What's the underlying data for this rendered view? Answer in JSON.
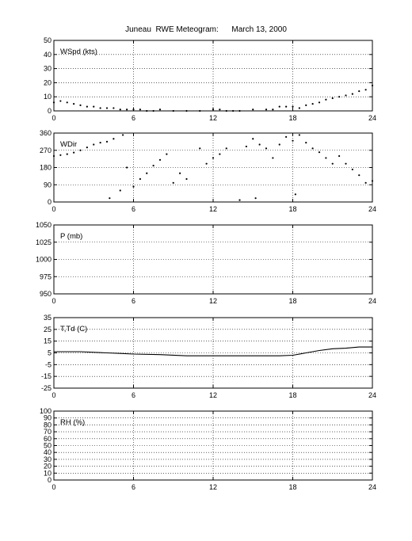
{
  "title": "Juneau  RWE Meteogram:      March 13, 2000",
  "chart_data": [
    {
      "type": "scatter",
      "label": "WSpd (kts)",
      "xlim": [
        0,
        24
      ],
      "ylim": [
        0,
        50
      ],
      "xticks": [
        0,
        6,
        12,
        18,
        24
      ],
      "yticks": [
        0,
        10,
        20,
        30,
        40,
        50
      ],
      "grid": true,
      "x": [
        0,
        0.5,
        1,
        1.5,
        2,
        2.5,
        3,
        3.5,
        4,
        4.5,
        5,
        5.5,
        6,
        6.5,
        7,
        7.5,
        8,
        9,
        10,
        11,
        12,
        12.5,
        13,
        13.5,
        14,
        15,
        16,
        16.5,
        17,
        17.5,
        18,
        18.5,
        19,
        19.5,
        20,
        20.5,
        21,
        21.5,
        22,
        22.5,
        23,
        23.5,
        24
      ],
      "y": [
        6,
        7,
        6,
        5,
        4,
        3,
        3,
        2,
        2,
        2,
        1,
        1,
        1,
        1,
        0,
        0,
        1,
        0,
        0,
        0,
        1,
        1,
        0,
        0,
        0,
        1,
        1,
        1,
        3,
        3,
        3,
        2,
        4,
        5,
        6,
        8,
        9,
        10,
        11,
        12,
        14,
        15,
        18
      ]
    },
    {
      "type": "scatter",
      "label": "WDir",
      "xlim": [
        0,
        24
      ],
      "ylim": [
        0,
        360
      ],
      "xticks": [
        0,
        6,
        12,
        18,
        24
      ],
      "yticks": [
        0,
        90,
        180,
        270,
        360
      ],
      "grid": true,
      "x": [
        0,
        0.5,
        1,
        1.5,
        2,
        2.5,
        3,
        3.5,
        4,
        4.2,
        4.5,
        5,
        5.2,
        5.5,
        6,
        6.5,
        7,
        7.5,
        8,
        8.5,
        9,
        9.5,
        10,
        11,
        11.5,
        12,
        12.5,
        13,
        14,
        14.5,
        15,
        15.2,
        15.5,
        16,
        16.5,
        17,
        17.5,
        18,
        18.2,
        18.5,
        19,
        19.5,
        20,
        20.5,
        21,
        21.5,
        22,
        22.5,
        23,
        23.5,
        24
      ],
      "y": [
        240,
        245,
        250,
        258,
        270,
        285,
        300,
        310,
        315,
        20,
        330,
        60,
        350,
        180,
        80,
        120,
        150,
        190,
        220,
        250,
        100,
        150,
        120,
        280,
        200,
        230,
        250,
        280,
        10,
        290,
        330,
        20,
        300,
        280,
        230,
        300,
        340,
        320,
        40,
        350,
        310,
        280,
        260,
        230,
        200,
        240,
        200,
        170,
        140,
        100,
        110
      ]
    },
    {
      "type": "line",
      "label": "P (mb)",
      "xlim": [
        0,
        24
      ],
      "ylim": [
        950,
        1050
      ],
      "xticks": [
        0,
        6,
        12,
        18,
        24
      ],
      "yticks": [
        950,
        975,
        1000,
        1025,
        1050
      ],
      "grid": true,
      "x": [],
      "y": []
    },
    {
      "type": "line",
      "label": "T,Td (C)",
      "xlim": [
        0,
        24
      ],
      "ylim": [
        -25,
        35
      ],
      "xticks": [
        0,
        6,
        12,
        18,
        24
      ],
      "yticks": [
        -25,
        -15,
        -5,
        5,
        15,
        25,
        35
      ],
      "grid": true,
      "x": [
        0,
        2,
        4,
        5,
        6,
        8,
        10,
        12,
        14,
        16,
        17,
        18,
        19,
        20,
        21,
        22,
        23,
        24
      ],
      "y": [
        6,
        6,
        5,
        4.5,
        4,
        3.5,
        2.5,
        2.5,
        2.5,
        2.5,
        2.5,
        3,
        5,
        7,
        8.5,
        9,
        10,
        10
      ]
    },
    {
      "type": "line",
      "label": "RH (%)",
      "xlim": [
        0,
        24
      ],
      "ylim": [
        0,
        100
      ],
      "xticks": [
        0,
        6,
        12,
        18,
        24
      ],
      "yticks": [
        0,
        10,
        20,
        30,
        40,
        50,
        60,
        70,
        80,
        90,
        100
      ],
      "grid": true,
      "x": [],
      "y": []
    }
  ]
}
